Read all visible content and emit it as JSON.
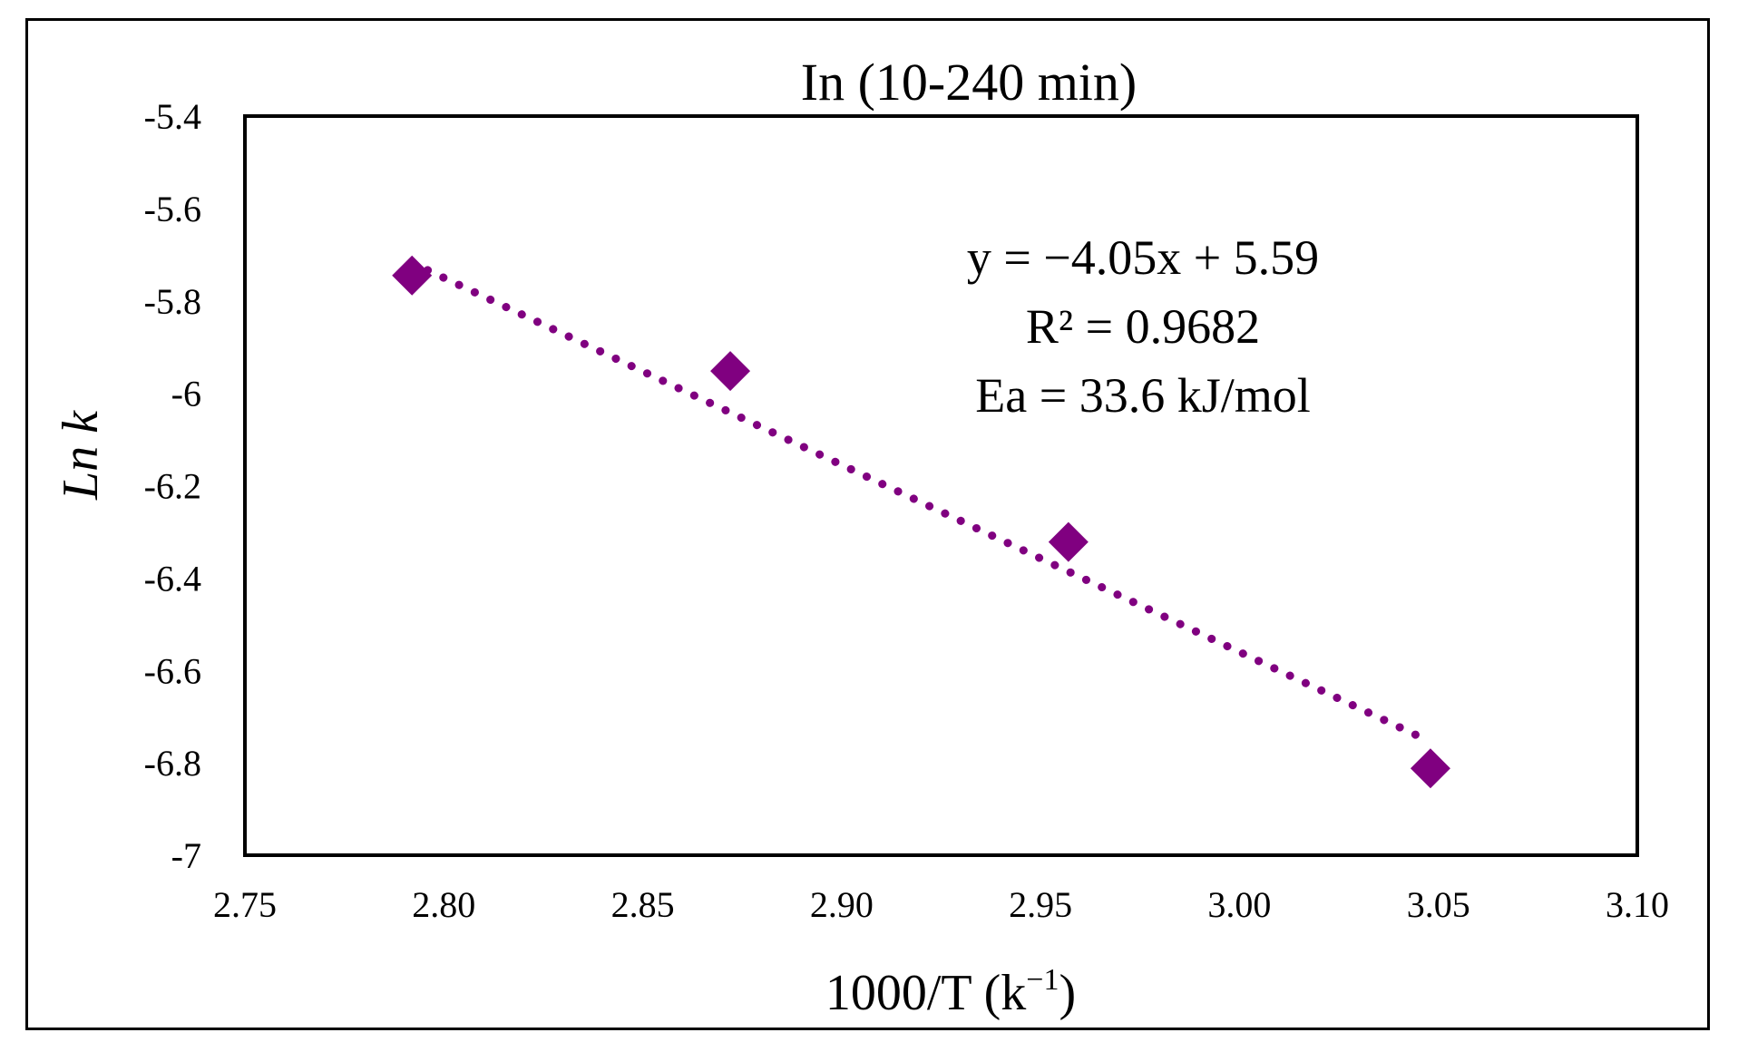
{
  "chart_data": {
    "type": "scatter",
    "title": "In (10-240 min)",
    "xlabel": "1000/T (k",
    "xlabel_sup": "−1",
    "xlabel_end": ")",
    "ylabel_italic": "Ln k",
    "xlim": [
      2.75,
      3.1
    ],
    "ylim": [
      -7,
      -5.4
    ],
    "x_ticks": [
      2.75,
      2.8,
      2.85,
      2.9,
      2.95,
      3.0,
      3.05,
      3.1
    ],
    "x_tick_labels": [
      "2.75",
      "2.80",
      "2.85",
      "2.90",
      "2.95",
      "3.00",
      "3.05",
      "3.10"
    ],
    "y_ticks": [
      -5.4,
      -5.6,
      -5.8,
      -6,
      -6.2,
      -6.4,
      -6.6,
      -6.8,
      -7
    ],
    "y_tick_labels": [
      "-5.4",
      "-5.6",
      "-5.8",
      "-6",
      "-6.2",
      "-6.4",
      "-6.6",
      "-6.8",
      "-7"
    ],
    "grid": false,
    "series": [
      {
        "marker": "diamond",
        "color": "#800080",
        "points": [
          {
            "x": 2.792,
            "y": -5.745
          },
          {
            "x": 2.872,
            "y": -5.952
          },
          {
            "x": 2.957,
            "y": -6.322
          },
          {
            "x": 3.048,
            "y": -6.812
          }
        ]
      }
    ],
    "trendline": {
      "style": "dotted",
      "color": "#800080",
      "slope": -4.05,
      "intercept": 5.59,
      "x_range": [
        2.792,
        3.048
      ]
    },
    "annotations": [
      "y = −4.05x + 5.59",
      "R² = 0.9682",
      "Ea = 33.6 kJ/mol"
    ]
  }
}
